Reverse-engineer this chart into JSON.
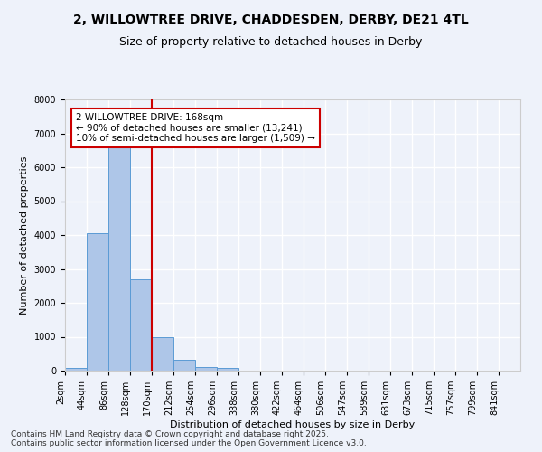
{
  "title_line1": "2, WILLOWTREE DRIVE, CHADDESDEN, DERBY, DE21 4TL",
  "title_line2": "Size of property relative to detached houses in Derby",
  "xlabel": "Distribution of detached houses by size in Derby",
  "ylabel": "Number of detached properties",
  "bin_labels": [
    "2sqm",
    "44sqm",
    "86sqm",
    "128sqm",
    "170sqm",
    "212sqm",
    "254sqm",
    "296sqm",
    "338sqm",
    "380sqm",
    "422sqm",
    "464sqm",
    "506sqm",
    "547sqm",
    "589sqm",
    "631sqm",
    "673sqm",
    "715sqm",
    "757sqm",
    "799sqm",
    "841sqm"
  ],
  "bar_values": [
    80,
    4050,
    6650,
    2700,
    990,
    320,
    120,
    90,
    0,
    0,
    0,
    0,
    0,
    0,
    0,
    0,
    0,
    0,
    0,
    0,
    0
  ],
  "bar_color": "#aec6e8",
  "bar_edge_color": "#5b9bd5",
  "property_line_x": 4,
  "annotation_text": "2 WILLOWTREE DRIVE: 168sqm\n← 90% of detached houses are smaller (13,241)\n10% of semi-detached houses are larger (1,509) →",
  "annotation_box_color": "#ffffff",
  "annotation_box_edge": "#cc0000",
  "vline_color": "#cc0000",
  "ylim": [
    0,
    8000
  ],
  "yticks": [
    0,
    1000,
    2000,
    3000,
    4000,
    5000,
    6000,
    7000,
    8000
  ],
  "background_color": "#eef2fa",
  "grid_color": "#ffffff",
  "footer_line1": "Contains HM Land Registry data © Crown copyright and database right 2025.",
  "footer_line2": "Contains public sector information licensed under the Open Government Licence v3.0.",
  "title_fontsize": 10,
  "subtitle_fontsize": 9,
  "axis_label_fontsize": 8,
  "tick_fontsize": 7,
  "annotation_fontsize": 7.5,
  "footer_fontsize": 6.5
}
